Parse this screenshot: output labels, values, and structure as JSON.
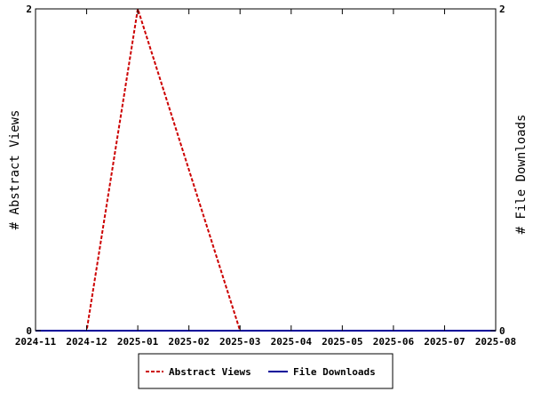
{
  "chart_data": {
    "type": "line",
    "xlabel": "",
    "ylabel_left": "# Abstract Views",
    "ylabel_right": "# File Downloads",
    "x_ticks": [
      "2024-11",
      "2024-12",
      "2025-01",
      "2025-02",
      "2025-03",
      "2025-04",
      "2025-05",
      "2025-06",
      "2025-07",
      "2025-08"
    ],
    "y_ticks_left": [
      "0",
      "2"
    ],
    "y_ticks_right": [
      "0",
      "2"
    ],
    "ylim_left": [
      0,
      2
    ],
    "ylim_right": [
      0,
      2
    ],
    "grid": false,
    "legend_position": "bottom-center",
    "series": [
      {
        "name": "Abstract Views",
        "axis": "left",
        "color": "#cc0000",
        "style": "dashed",
        "x": [
          "2024-11",
          "2024-12",
          "2025-01",
          "2025-02",
          "2025-03",
          "2025-04",
          "2025-05",
          "2025-06",
          "2025-07",
          "2025-08"
        ],
        "values": [
          0,
          0,
          2,
          1,
          0,
          0,
          0,
          0,
          0,
          0
        ]
      },
      {
        "name": "File Downloads",
        "axis": "right",
        "color": "#000099",
        "style": "solid",
        "x": [
          "2024-11",
          "2024-12",
          "2025-01",
          "2025-02",
          "2025-03",
          "2025-04",
          "2025-05",
          "2025-06",
          "2025-07",
          "2025-08"
        ],
        "values": [
          0,
          0,
          0,
          0,
          0,
          0,
          0,
          0,
          0,
          0
        ]
      }
    ]
  }
}
